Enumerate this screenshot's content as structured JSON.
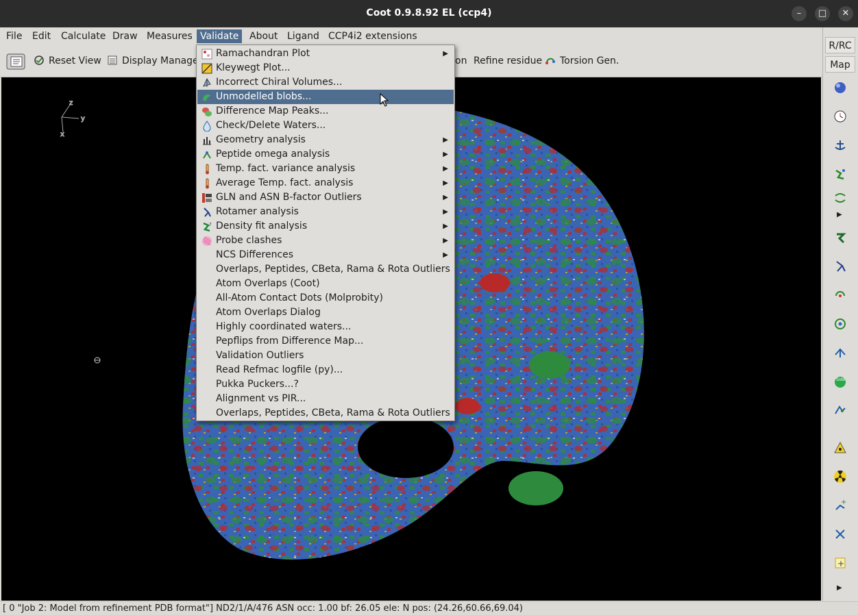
{
  "window": {
    "title": "Coot 0.9.8.92 EL (ccp4)"
  },
  "menubar": [
    "File",
    "Edit",
    "Calculate",
    "Draw",
    "Measures",
    "Validate",
    "About",
    "Ligand",
    "CCP4i2 extensions"
  ],
  "toolbar": {
    "reset_view": "Reset View",
    "display_manager": "Display Manager",
    "truncated_label": "on",
    "refine_residue": "Refine residue",
    "torsion_gen": "Torsion Gen."
  },
  "axes": {
    "x": "x",
    "y": "y",
    "z": "z"
  },
  "right_toolbar": {
    "rrc_label": "R/RC",
    "map_label": "Map"
  },
  "validate_menu": {
    "items": [
      {
        "label": "Ramachandran Plot",
        "icon": "ramachandran-icon",
        "submenu": true
      },
      {
        "label": "Kleywegt Plot...",
        "icon": "kleywegt-icon",
        "submenu": false
      },
      {
        "label": "Incorrect Chiral Volumes...",
        "icon": "chiral-icon",
        "submenu": false
      },
      {
        "label": "Unmodelled blobs...",
        "icon": "blob-icon",
        "submenu": false,
        "highlighted": true
      },
      {
        "label": "Difference Map Peaks...",
        "icon": "peaks-icon",
        "submenu": false
      },
      {
        "label": "Check/Delete Waters...",
        "icon": "water-drop-icon",
        "submenu": false
      },
      {
        "label": "Geometry analysis",
        "icon": "geometry-icon",
        "submenu": true
      },
      {
        "label": "Peptide omega analysis",
        "icon": "omega-icon",
        "submenu": true
      },
      {
        "label": "Temp. fact. variance analysis",
        "icon": "thermometer-icon",
        "submenu": true
      },
      {
        "label": "Average Temp. fact. analysis",
        "icon": "thermometer-icon",
        "submenu": true
      },
      {
        "label": "GLN and ASN B-factor Outliers",
        "icon": "gln-asn-icon",
        "submenu": true
      },
      {
        "label": "Rotamer analysis",
        "icon": "rotamer-icon",
        "submenu": true
      },
      {
        "label": "Density fit analysis",
        "icon": "density-fit-icon",
        "submenu": true
      },
      {
        "label": "Probe clashes",
        "icon": "probe-icon",
        "submenu": true
      },
      {
        "label": "NCS Differences",
        "icon": "",
        "submenu": true
      },
      {
        "label": "Overlaps, Peptides, CBeta, Rama & Rota Outliers",
        "icon": "",
        "submenu": false
      },
      {
        "label": "Atom Overlaps (Coot)",
        "icon": "",
        "submenu": false
      },
      {
        "label": "All-Atom Contact Dots (Molprobity)",
        "icon": "",
        "submenu": false
      },
      {
        "label": "Atom Overlaps Dialog",
        "icon": "",
        "submenu": false
      },
      {
        "label": "Highly coordinated waters...",
        "icon": "",
        "submenu": false
      },
      {
        "label": "Pepflips from Difference Map...",
        "icon": "",
        "submenu": false
      },
      {
        "label": "Validation Outliers",
        "icon": "",
        "submenu": false
      },
      {
        "label": "Read Refmac logfile (py)...",
        "icon": "",
        "submenu": false
      },
      {
        "label": "Pukka Puckers...?",
        "icon": "",
        "submenu": false
      },
      {
        "label": "Alignment vs PIR...",
        "icon": "",
        "submenu": false
      },
      {
        "label": "Overlaps, Peptides, CBeta, Rama & Rota Outliers",
        "icon": "",
        "submenu": false
      }
    ]
  },
  "status": "[ 0 \"Job 2: Model from refinement PDB format\"]  ND2/1/A/476 ASN occ: 1.00 bf: 26.05 ele:  N pos: (24.26,60.66,69.04)",
  "colors": {
    "highlight": "#4f6d8e",
    "viewport": "#000000",
    "density_blue": "#3a64b4",
    "density_green": "#2e8b3e",
    "density_red": "#b82a2a"
  }
}
